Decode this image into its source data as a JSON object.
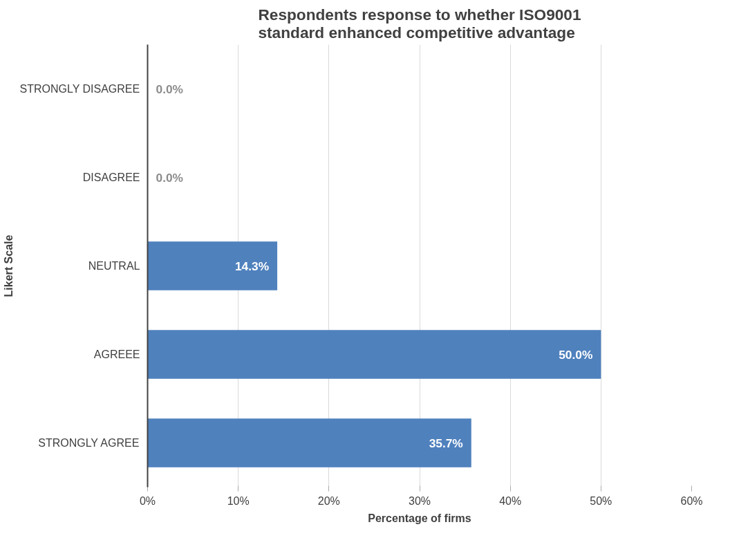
{
  "chart_data": {
    "type": "bar",
    "orientation": "horizontal",
    "title": "Respondents response to whether ISO9001 standard enhanced competitive advantage",
    "xlabel": "Percentage of firms",
    "ylabel": "Likert Scale",
    "categories": [
      "STRONGLY DISAGREE",
      "DISAGREE",
      "NEUTRAL",
      "AGREEE",
      "STRONGLY AGREE"
    ],
    "values": [
      0,
      0,
      14.3,
      50.0,
      35.7
    ],
    "value_labels": [
      "0.0%",
      "0.0%",
      "14.3%",
      "50.0%",
      "35.7%"
    ],
    "color": "#4f81bd",
    "xlim": [
      0,
      60
    ],
    "xticks": [
      {
        "value": 0,
        "label": "0%"
      },
      {
        "value": 10,
        "label": "10%"
      },
      {
        "value": 20,
        "label": "20%"
      },
      {
        "value": 30,
        "label": "30%"
      },
      {
        "value": 40,
        "label": "40%"
      },
      {
        "value": 50,
        "label": "50%"
      },
      {
        "value": 60,
        "label": "60%"
      }
    ],
    "grid": "x"
  }
}
